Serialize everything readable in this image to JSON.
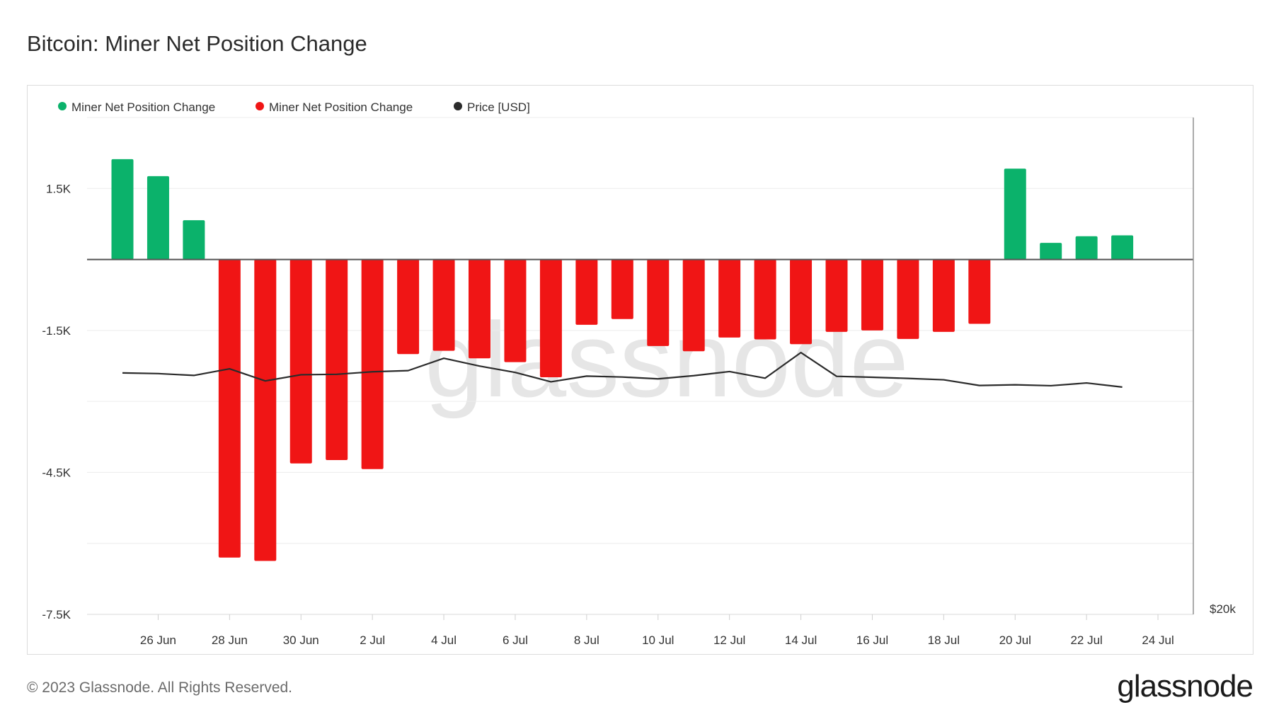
{
  "page": {
    "title": "Bitcoin: Miner Net Position Change",
    "copyright": "© 2023 Glassnode. All Rights Reserved.",
    "logo": "glassnode",
    "watermark": "glassnode"
  },
  "chart_data": {
    "type": "bar",
    "legend": [
      {
        "name": "Miner Net Position Change",
        "color": "#0bb26b"
      },
      {
        "name": "Miner Net Position Change",
        "color": "#f01515"
      },
      {
        "name": "Price [USD]",
        "color": "#2b2b2b"
      }
    ],
    "legend_position": "top-left",
    "grid": true,
    "x_ticks": [
      "26 Jun",
      "28 Jun",
      "30 Jun",
      "2 Jul",
      "4 Jul",
      "6 Jul",
      "8 Jul",
      "10 Jul",
      "12 Jul",
      "14 Jul",
      "16 Jul",
      "18 Jul",
      "20 Jul",
      "22 Jul",
      "24 Jul"
    ],
    "y_ticks": [
      "1.5K",
      "-1.5K",
      "-4.5K",
      "-7.5K"
    ],
    "y_tick_values": [
      1500,
      -1500,
      -4500,
      -7500
    ],
    "ylim": [
      -7500,
      3000
    ],
    "y2_label": "$20k",
    "dates": [
      "25 Jun",
      "26 Jun",
      "27 Jun",
      "28 Jun",
      "29 Jun",
      "30 Jun",
      "1 Jul",
      "2 Jul",
      "3 Jul",
      "4 Jul",
      "5 Jul",
      "6 Jul",
      "7 Jul",
      "8 Jul",
      "9 Jul",
      "10 Jul",
      "11 Jul",
      "12 Jul",
      "13 Jul",
      "14 Jul",
      "15 Jul",
      "16 Jul",
      "17 Jul",
      "18 Jul",
      "19 Jul",
      "20 Jul",
      "21 Jul",
      "22 Jul",
      "23 Jul"
    ],
    "positive_color": "#0bb26b",
    "negative_color": "#f01515",
    "values": [
      2120,
      1760,
      830,
      -6300,
      -6370,
      -4310,
      -4240,
      -4430,
      -2000,
      -1930,
      -2090,
      -2170,
      -2490,
      -1380,
      -1260,
      -1830,
      -1940,
      -1650,
      -1690,
      -1790,
      -1530,
      -1500,
      -1680,
      -1530,
      -1360,
      1920,
      350,
      490,
      510
    ],
    "price_series": {
      "name": "Price [USD]",
      "values": [
        30500,
        30470,
        30390,
        30680,
        30150,
        30420,
        30440,
        30550,
        30600,
        31140,
        30800,
        30520,
        30110,
        30360,
        30320,
        30240,
        30380,
        30560,
        30270,
        31390,
        30350,
        30310,
        30260,
        30200,
        29950,
        29980,
        29940,
        30060,
        29880
      ]
    }
  }
}
